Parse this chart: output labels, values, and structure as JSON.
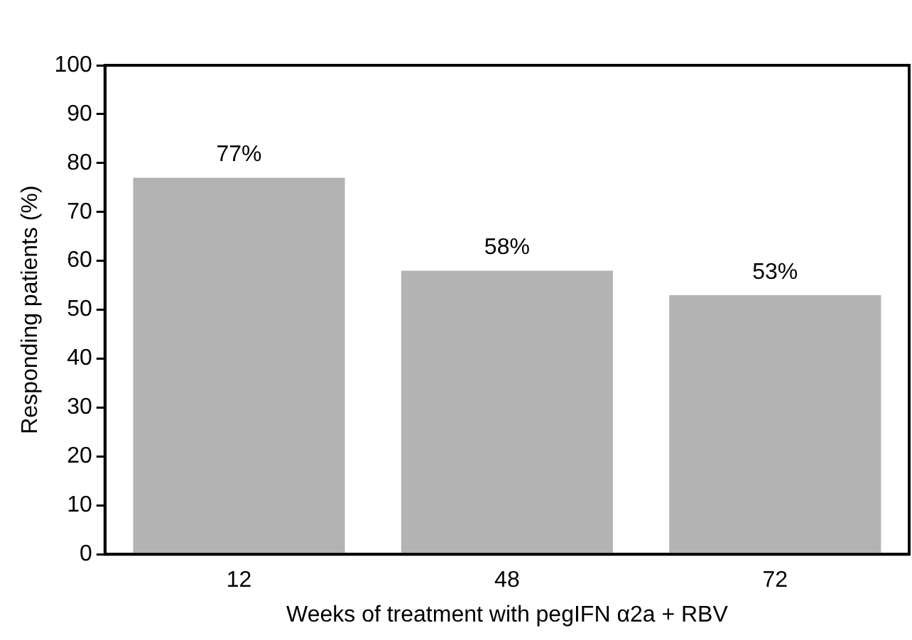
{
  "chart_data": {
    "type": "bar",
    "xlabel": "Weeks of treatment with pegIFN α2a + RBV",
    "ylabel": "Responding patients (%)",
    "categories": [
      "12",
      "48",
      "72"
    ],
    "values": [
      77,
      58,
      53
    ],
    "color": "#b3b3b3",
    "value_labels": [
      "77%",
      "58%",
      "53%"
    ],
    "ylim": [
      0,
      100
    ],
    "yticks": [
      0,
      10,
      20,
      30,
      40,
      50,
      60,
      70,
      80,
      90,
      100
    ],
    "grid": false,
    "legend": false
  }
}
